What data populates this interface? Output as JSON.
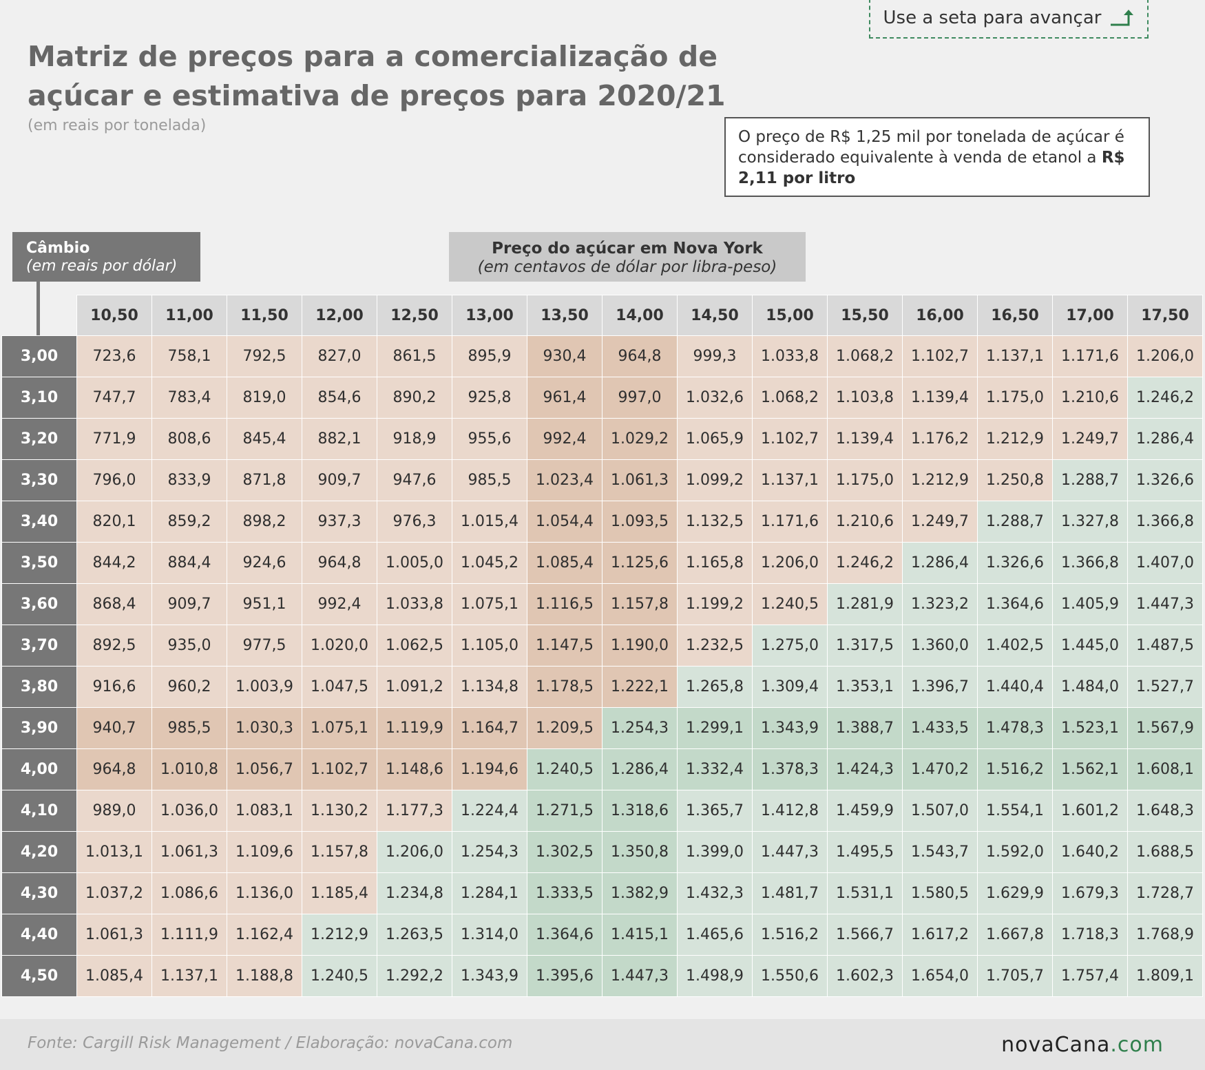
{
  "header": {
    "title": "Matriz de preços para a comercialização de açúcar e estimativa de preços para 2020/21",
    "subtitle": "(em reais por tonelada)",
    "advance_label": "Use a seta para avançar",
    "advance_icon": "arrow-up-right-icon"
  },
  "note": {
    "text": "O preço de R$ 1,25 mil por tonelada de açúcar é considerado equivalente à venda de etanol a ",
    "bold": "R$ 2,11 por litro"
  },
  "cambio": {
    "title": "Câmbio",
    "subtitle": "(em reais por dólar)"
  },
  "price_header": {
    "title": "Preço do açúcar em Nova York",
    "subtitle": "(em centavos de dólar por libra-peso)"
  },
  "colors": {
    "light_orange": "#ead8cc",
    "dark_orange": "#e0c6b3",
    "light_green": "#d6e3da",
    "dark_green": "#c3d9c9",
    "row_header": "#777777",
    "brand_green": "#2f7f4c"
  },
  "table": {
    "columns": [
      "10,50",
      "11,00",
      "11,50",
      "12,00",
      "12,50",
      "13,00",
      "13,50",
      "14,00",
      "14,50",
      "15,00",
      "15,50",
      "16,00",
      "16,50",
      "17,00",
      "17,50"
    ],
    "rows": [
      {
        "label": "3,00",
        "values": [
          "723,6",
          "758,1",
          "792,5",
          "827,0",
          "861,5",
          "895,9",
          "930,4",
          "964,8",
          "999,3",
          "1.033,8",
          "1.068,2",
          "1.102,7",
          "1.137,1",
          "1.171,6",
          "1.206,0"
        ],
        "shades": [
          "c1",
          "c1",
          "c1",
          "c1",
          "c1",
          "c1",
          "c2",
          "c2",
          "c1",
          "c1",
          "c1",
          "c1",
          "c1",
          "c1",
          "c1"
        ]
      },
      {
        "label": "3,10",
        "values": [
          "747,7",
          "783,4",
          "819,0",
          "854,6",
          "890,2",
          "925,8",
          "961,4",
          "997,0",
          "1.032,6",
          "1.068,2",
          "1.103,8",
          "1.139,4",
          "1.175,0",
          "1.210,6",
          "1.246,2"
        ],
        "shades": [
          "c1",
          "c1",
          "c1",
          "c1",
          "c1",
          "c1",
          "c2",
          "c2",
          "c1",
          "c1",
          "c1",
          "c1",
          "c1",
          "c1",
          "g1"
        ]
      },
      {
        "label": "3,20",
        "values": [
          "771,9",
          "808,6",
          "845,4",
          "882,1",
          "918,9",
          "955,6",
          "992,4",
          "1.029,2",
          "1.065,9",
          "1.102,7",
          "1.139,4",
          "1.176,2",
          "1.212,9",
          "1.249,7",
          "1.286,4"
        ],
        "shades": [
          "c1",
          "c1",
          "c1",
          "c1",
          "c1",
          "c1",
          "c2",
          "c2",
          "c1",
          "c1",
          "c1",
          "c1",
          "c1",
          "c1",
          "g1"
        ]
      },
      {
        "label": "3,30",
        "values": [
          "796,0",
          "833,9",
          "871,8",
          "909,7",
          "947,6",
          "985,5",
          "1.023,4",
          "1.061,3",
          "1.099,2",
          "1.137,1",
          "1.175,0",
          "1.212,9",
          "1.250,8",
          "1.288,7",
          "1.326,6"
        ],
        "shades": [
          "c1",
          "c1",
          "c1",
          "c1",
          "c1",
          "c1",
          "c2",
          "c2",
          "c1",
          "c1",
          "c1",
          "c1",
          "c1",
          "g1",
          "g1"
        ]
      },
      {
        "label": "3,40",
        "values": [
          "820,1",
          "859,2",
          "898,2",
          "937,3",
          "976,3",
          "1.015,4",
          "1.054,4",
          "1.093,5",
          "1.132,5",
          "1.171,6",
          "1.210,6",
          "1.249,7",
          "1.288,7",
          "1.327,8",
          "1.366,8"
        ],
        "shades": [
          "c1",
          "c1",
          "c1",
          "c1",
          "c1",
          "c1",
          "c2",
          "c2",
          "c1",
          "c1",
          "c1",
          "c1",
          "g1",
          "g1",
          "g1"
        ]
      },
      {
        "label": "3,50",
        "values": [
          "844,2",
          "884,4",
          "924,6",
          "964,8",
          "1.005,0",
          "1.045,2",
          "1.085,4",
          "1.125,6",
          "1.165,8",
          "1.206,0",
          "1.246,2",
          "1.286,4",
          "1.326,6",
          "1.366,8",
          "1.407,0"
        ],
        "shades": [
          "c1",
          "c1",
          "c1",
          "c1",
          "c1",
          "c1",
          "c2",
          "c2",
          "c1",
          "c1",
          "c1",
          "g1",
          "g1",
          "g1",
          "g1"
        ]
      },
      {
        "label": "3,60",
        "values": [
          "868,4",
          "909,7",
          "951,1",
          "992,4",
          "1.033,8",
          "1.075,1",
          "1.116,5",
          "1.157,8",
          "1.199,2",
          "1.240,5",
          "1.281,9",
          "1.323,2",
          "1.364,6",
          "1.405,9",
          "1.447,3"
        ],
        "shades": [
          "c1",
          "c1",
          "c1",
          "c1",
          "c1",
          "c1",
          "c2",
          "c2",
          "c1",
          "c1",
          "g1",
          "g1",
          "g1",
          "g1",
          "g1"
        ]
      },
      {
        "label": "3,70",
        "values": [
          "892,5",
          "935,0",
          "977,5",
          "1.020,0",
          "1.062,5",
          "1.105,0",
          "1.147,5",
          "1.190,0",
          "1.232,5",
          "1.275,0",
          "1.317,5",
          "1.360,0",
          "1.402,5",
          "1.445,0",
          "1.487,5"
        ],
        "shades": [
          "c1",
          "c1",
          "c1",
          "c1",
          "c1",
          "c1",
          "c2",
          "c2",
          "c1",
          "g1",
          "g1",
          "g1",
          "g1",
          "g1",
          "g1"
        ]
      },
      {
        "label": "3,80",
        "values": [
          "916,6",
          "960,2",
          "1.003,9",
          "1.047,5",
          "1.091,2",
          "1.134,8",
          "1.178,5",
          "1.222,1",
          "1.265,8",
          "1.309,4",
          "1.353,1",
          "1.396,7",
          "1.440,4",
          "1.484,0",
          "1.527,7"
        ],
        "shades": [
          "c1",
          "c1",
          "c1",
          "c1",
          "c1",
          "c1",
          "c2",
          "c2",
          "g1",
          "g1",
          "g1",
          "g1",
          "g1",
          "g1",
          "g1"
        ]
      },
      {
        "label": "3,90",
        "values": [
          "940,7",
          "985,5",
          "1.030,3",
          "1.075,1",
          "1.119,9",
          "1.164,7",
          "1.209,5",
          "1.254,3",
          "1.299,1",
          "1.343,9",
          "1.388,7",
          "1.433,5",
          "1.478,3",
          "1.523,1",
          "1.567,9"
        ],
        "shades": [
          "c2",
          "c2",
          "c2",
          "c2",
          "c2",
          "c2",
          "c2",
          "g2",
          "g2",
          "g2",
          "g2",
          "g2",
          "g2",
          "g2",
          "g2"
        ]
      },
      {
        "label": "4,00",
        "values": [
          "964,8",
          "1.010,8",
          "1.056,7",
          "1.102,7",
          "1.148,6",
          "1.194,6",
          "1.240,5",
          "1.286,4",
          "1.332,4",
          "1.378,3",
          "1.424,3",
          "1.470,2",
          "1.516,2",
          "1.562,1",
          "1.608,1"
        ],
        "shades": [
          "c2",
          "c2",
          "c2",
          "c2",
          "c2",
          "c2",
          "g2",
          "g2",
          "g2",
          "g2",
          "g2",
          "g2",
          "g2",
          "g2",
          "g2"
        ]
      },
      {
        "label": "4,10",
        "values": [
          "989,0",
          "1.036,0",
          "1.083,1",
          "1.130,2",
          "1.177,3",
          "1.224,4",
          "1.271,5",
          "1.318,6",
          "1.365,7",
          "1.412,8",
          "1.459,9",
          "1.507,0",
          "1.554,1",
          "1.601,2",
          "1.648,3"
        ],
        "shades": [
          "c1",
          "c1",
          "c1",
          "c1",
          "c1",
          "g1",
          "g2",
          "g2",
          "g1",
          "g1",
          "g1",
          "g1",
          "g1",
          "g1",
          "g1"
        ]
      },
      {
        "label": "4,20",
        "values": [
          "1.013,1",
          "1.061,3",
          "1.109,6",
          "1.157,8",
          "1.206,0",
          "1.254,3",
          "1.302,5",
          "1.350,8",
          "1.399,0",
          "1.447,3",
          "1.495,5",
          "1.543,7",
          "1.592,0",
          "1.640,2",
          "1.688,5"
        ],
        "shades": [
          "c1",
          "c1",
          "c1",
          "c1",
          "g1",
          "g1",
          "g2",
          "g2",
          "g1",
          "g1",
          "g1",
          "g1",
          "g1",
          "g1",
          "g1"
        ]
      },
      {
        "label": "4,30",
        "values": [
          "1.037,2",
          "1.086,6",
          "1.136,0",
          "1.185,4",
          "1.234,8",
          "1.284,1",
          "1.333,5",
          "1.382,9",
          "1.432,3",
          "1.481,7",
          "1.531,1",
          "1.580,5",
          "1.629,9",
          "1.679,3",
          "1.728,7"
        ],
        "shades": [
          "c1",
          "c1",
          "c1",
          "c1",
          "g1",
          "g1",
          "g2",
          "g2",
          "g1",
          "g1",
          "g1",
          "g1",
          "g1",
          "g1",
          "g1"
        ]
      },
      {
        "label": "4,40",
        "values": [
          "1.061,3",
          "1.111,9",
          "1.162,4",
          "1.212,9",
          "1.263,5",
          "1.314,0",
          "1.364,6",
          "1.415,1",
          "1.465,6",
          "1.516,2",
          "1.566,7",
          "1.617,2",
          "1.667,8",
          "1.718,3",
          "1.768,9"
        ],
        "shades": [
          "c1",
          "c1",
          "c1",
          "g1",
          "g1",
          "g1",
          "g2",
          "g2",
          "g1",
          "g1",
          "g1",
          "g1",
          "g1",
          "g1",
          "g1"
        ]
      },
      {
        "label": "4,50",
        "values": [
          "1.085,4",
          "1.137,1",
          "1.188,8",
          "1.240,5",
          "1.292,2",
          "1.343,9",
          "1.395,6",
          "1.447,3",
          "1.498,9",
          "1.550,6",
          "1.602,3",
          "1.654,0",
          "1.705,7",
          "1.757,4",
          "1.809,1"
        ],
        "shades": [
          "c1",
          "c1",
          "c1",
          "g1",
          "g1",
          "g1",
          "g2",
          "g2",
          "g1",
          "g1",
          "g1",
          "g1",
          "g1",
          "g1",
          "g1"
        ]
      }
    ]
  },
  "footer": {
    "source": "Fonte: Cargill Risk Management / Elaboração: novaCana.com",
    "brand_name": "novaCana",
    "brand_suffix": ".com"
  }
}
